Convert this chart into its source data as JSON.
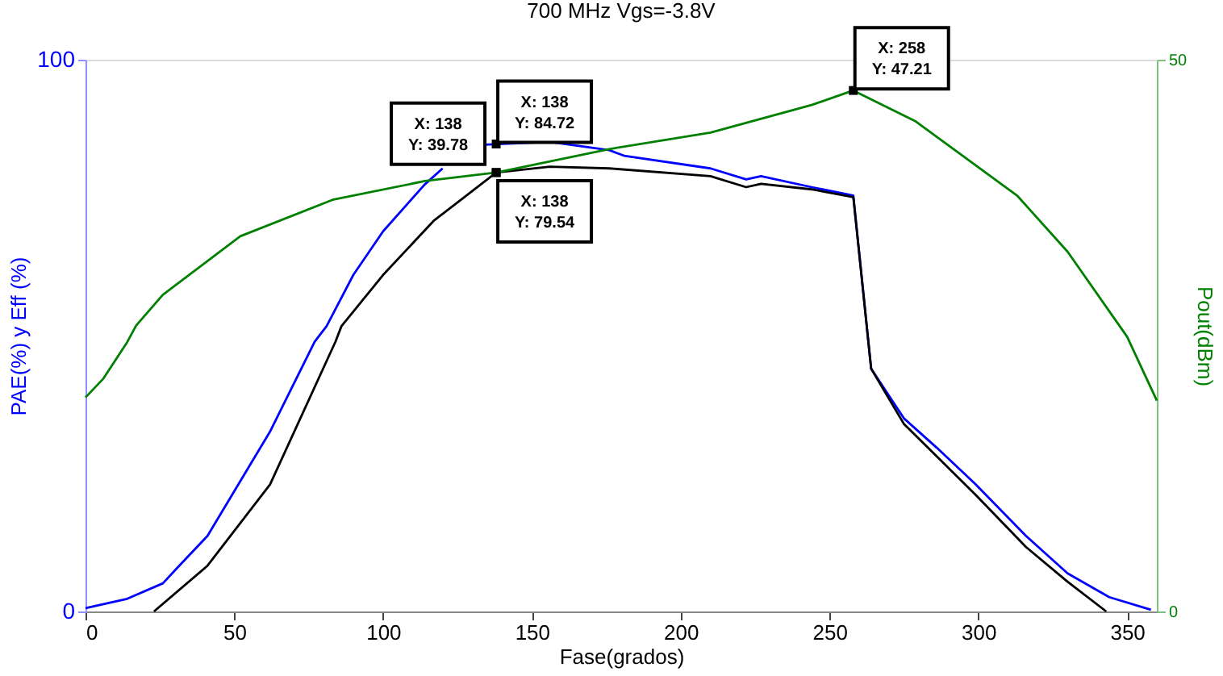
{
  "chart_data": {
    "type": "line",
    "title": "700 MHz Vgs=-3.8V",
    "xlabel": "Fase(grados)",
    "ylabel": "PAE(%) y Eff (%)",
    "y2label": "Pout(dBm)",
    "xlim": [
      0,
      360
    ],
    "xticks": [
      0,
      50,
      100,
      150,
      200,
      250,
      300,
      350
    ],
    "ylim": [
      0,
      100
    ],
    "yticks": [
      0,
      100
    ],
    "y2lim": [
      0,
      50
    ],
    "y2ticks": [
      0,
      50
    ],
    "grid": false,
    "marker": "none",
    "line_style": "solid",
    "series": [
      {
        "color": "#0000ff",
        "x": [
          0,
          14,
          26,
          31,
          41,
          62,
          77,
          81,
          90,
          100,
          114,
          120,
          127,
          134,
          156,
          176,
          181,
          210,
          222,
          227,
          244,
          258,
          264,
          275,
          286,
          299,
          316,
          330,
          344,
          358
        ],
        "values": [
          0.6,
          2.3,
          5.1,
          8,
          13.7,
          32.6,
          48.9,
          51.7,
          61,
          68.9,
          77.4,
          80.3,
          null,
          84.6,
          85.1,
          83.6,
          82.6,
          80.3,
          78.3,
          78.9,
          76.9,
          75.4,
          44,
          35,
          29.7,
          23.1,
          13.7,
          6.9,
          2.6,
          0.3
        ]
      },
      {
        "color": "#000000",
        "x": [
          23,
          41,
          62,
          84,
          86,
          100,
          117,
          138,
          156,
          176,
          210,
          222,
          227,
          244,
          258,
          264,
          275,
          299,
          316,
          330,
          343
        ],
        "values": [
          0,
          8.3,
          23,
          48.9,
          51.7,
          61,
          70.8,
          79.54,
          80.6,
          80.3,
          78.9,
          76.9,
          77.5,
          76.5,
          75.1,
          44,
          34,
          21.2,
          11.7,
          5.4,
          0
        ]
      },
      {
        "color": "#008000",
        "axis": "y2",
        "x": [
          0,
          6,
          14,
          17,
          26,
          52,
          83,
          114,
          138,
          176,
          210,
          244,
          258,
          279,
          313,
          330,
          350,
          360
        ],
        "values": [
          19.4,
          21.1,
          24.4,
          25.9,
          28.7,
          34,
          37.3,
          39,
          39.78,
          41.9,
          43.4,
          45.9,
          47.21,
          44.4,
          37.7,
          32.6,
          24.9,
          19.1
        ]
      }
    ],
    "annotations": [
      {
        "text": "X: 138\nY: 84.72",
        "x": 138,
        "y": 84.72
      },
      "X: 138\nY: 39.78",
      {
        "text": "X: 138\nY: 79.54",
        "x": 138,
        "y": 79.54
      },
      "X: 258\nY: 47.21"
    ]
  }
}
